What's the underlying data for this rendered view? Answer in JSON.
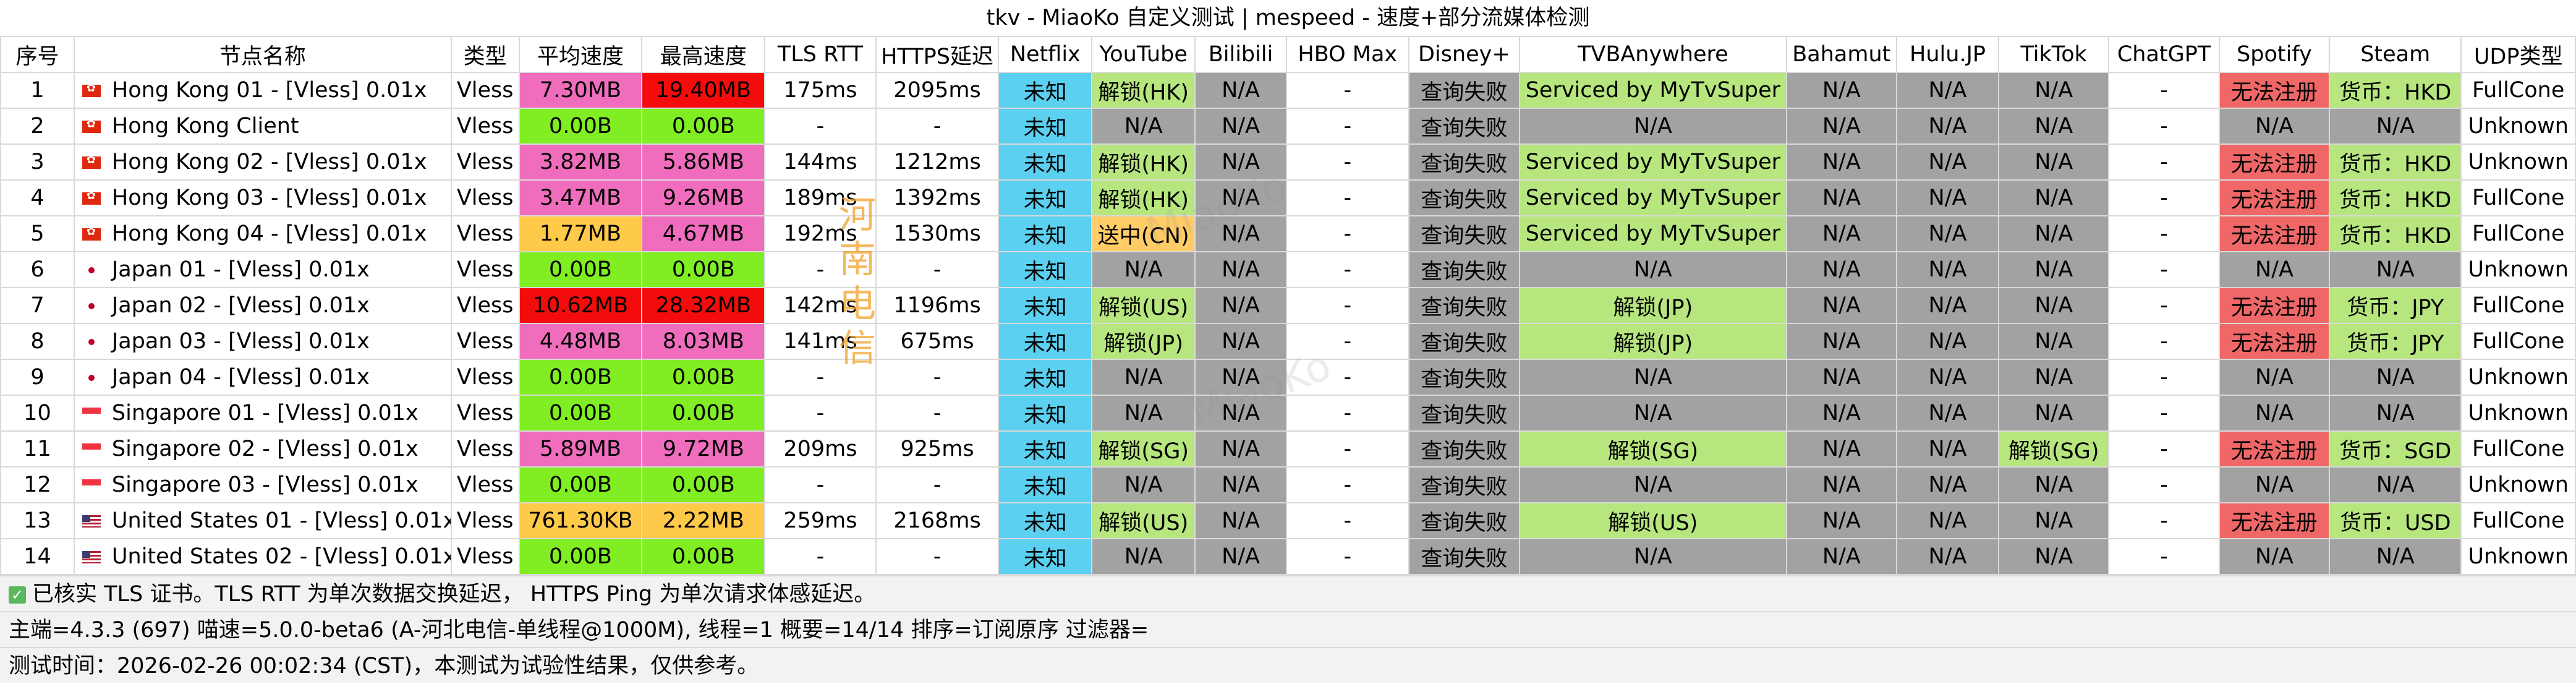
{
  "title": "tkv - MiaoKo 自定义测试 | mespeed - 速度+部分流媒体检测",
  "colors": {
    "pink": "#f06dbd",
    "red": "#f40c0c",
    "lime": "#80ee22",
    "orange": "#ffc94a",
    "cyan": "#5bd0f0",
    "light_green": "#b7e67f",
    "gray": "#a2a2a2",
    "salmon": "#ef6767",
    "peach": "#ffcc66",
    "white": "#ffffff"
  },
  "columns": [
    "序号",
    "节点名称",
    "类型",
    "平均速度",
    "最高速度",
    "TLS RTT",
    "HTTPS延迟",
    "Netflix",
    "YouTube",
    "Bilibili",
    "HBO Max",
    "Disney+",
    "TVBAnywhere",
    "Bahamut",
    "Hulu.JP",
    "TikTok",
    "ChatGPT",
    "Spotify",
    "Steam",
    "UDP类型"
  ],
  "rows": [
    {
      "id": "1",
      "flag": "hk",
      "name": "Hong Kong 01 - [Vless] 0.01x",
      "type": "Vless",
      "avg": "7.30MB",
      "avg_c": "pink",
      "max": "19.40MB",
      "max_c": "red",
      "tls": "175ms",
      "https": "2095ms",
      "netflix": "未知",
      "youtube": "解锁(HK)",
      "yt_c": "light_green",
      "bilibili": "N/A",
      "hbo": "-",
      "disney": "查询失败",
      "tvb": "Serviced by MyTvSuper",
      "tvb_c": "light_green",
      "bahamut": "N/A",
      "hulu": "N/A",
      "tiktok": "N/A",
      "tt_c": "gray",
      "chatgpt": "-",
      "spotify": "无法注册",
      "sp_c": "salmon",
      "steam": "货币：HKD",
      "st_c": "light_green",
      "udp": "FullCone"
    },
    {
      "id": "2",
      "flag": "hk",
      "name": "Hong Kong Client",
      "type": "Vless",
      "avg": "0.00B",
      "avg_c": "lime",
      "max": "0.00B",
      "max_c": "lime",
      "tls": "-",
      "https": "-",
      "netflix": "未知",
      "youtube": "N/A",
      "yt_c": "gray",
      "bilibili": "N/A",
      "hbo": "-",
      "disney": "查询失败",
      "tvb": "N/A",
      "tvb_c": "gray",
      "bahamut": "N/A",
      "hulu": "N/A",
      "tiktok": "N/A",
      "tt_c": "gray",
      "chatgpt": "-",
      "spotify": "N/A",
      "sp_c": "gray",
      "steam": "N/A",
      "st_c": "gray",
      "udp": "Unknown"
    },
    {
      "id": "3",
      "flag": "hk",
      "name": "Hong Kong 02 - [Vless] 0.01x",
      "type": "Vless",
      "avg": "3.82MB",
      "avg_c": "pink",
      "max": "5.86MB",
      "max_c": "pink",
      "tls": "144ms",
      "https": "1212ms",
      "netflix": "未知",
      "youtube": "解锁(HK)",
      "yt_c": "light_green",
      "bilibili": "N/A",
      "hbo": "-",
      "disney": "查询失败",
      "tvb": "Serviced by MyTvSuper",
      "tvb_c": "light_green",
      "bahamut": "N/A",
      "hulu": "N/A",
      "tiktok": "N/A",
      "tt_c": "gray",
      "chatgpt": "-",
      "spotify": "无法注册",
      "sp_c": "salmon",
      "steam": "货币：HKD",
      "st_c": "light_green",
      "udp": "Unknown"
    },
    {
      "id": "4",
      "flag": "hk",
      "name": "Hong Kong 03 - [Vless] 0.01x",
      "type": "Vless",
      "avg": "3.47MB",
      "avg_c": "pink",
      "max": "9.26MB",
      "max_c": "pink",
      "tls": "189ms",
      "https": "1392ms",
      "netflix": "未知",
      "youtube": "解锁(HK)",
      "yt_c": "light_green",
      "bilibili": "N/A",
      "hbo": "-",
      "disney": "查询失败",
      "tvb": "Serviced by MyTvSuper",
      "tvb_c": "light_green",
      "bahamut": "N/A",
      "hulu": "N/A",
      "tiktok": "N/A",
      "tt_c": "gray",
      "chatgpt": "-",
      "spotify": "无法注册",
      "sp_c": "salmon",
      "steam": "货币：HKD",
      "st_c": "light_green",
      "udp": "FullCone"
    },
    {
      "id": "5",
      "flag": "hk",
      "name": "Hong Kong 04 - [Vless] 0.01x",
      "type": "Vless",
      "avg": "1.77MB",
      "avg_c": "orange",
      "max": "4.67MB",
      "max_c": "pink",
      "tls": "192ms",
      "https": "1530ms",
      "netflix": "未知",
      "youtube": "送中(CN)",
      "yt_c": "peach",
      "bilibili": "N/A",
      "hbo": "-",
      "disney": "查询失败",
      "tvb": "Serviced by MyTvSuper",
      "tvb_c": "light_green",
      "bahamut": "N/A",
      "hulu": "N/A",
      "tiktok": "N/A",
      "tt_c": "gray",
      "chatgpt": "-",
      "spotify": "无法注册",
      "sp_c": "salmon",
      "steam": "货币：HKD",
      "st_c": "light_green",
      "udp": "FullCone"
    },
    {
      "id": "6",
      "flag": "jp",
      "name": "Japan 01 - [Vless] 0.01x",
      "type": "Vless",
      "avg": "0.00B",
      "avg_c": "lime",
      "max": "0.00B",
      "max_c": "lime",
      "tls": "-",
      "https": "-",
      "netflix": "未知",
      "youtube": "N/A",
      "yt_c": "gray",
      "bilibili": "N/A",
      "hbo": "-",
      "disney": "查询失败",
      "tvb": "N/A",
      "tvb_c": "gray",
      "bahamut": "N/A",
      "hulu": "N/A",
      "tiktok": "N/A",
      "tt_c": "gray",
      "chatgpt": "-",
      "spotify": "N/A",
      "sp_c": "gray",
      "steam": "N/A",
      "st_c": "gray",
      "udp": "Unknown"
    },
    {
      "id": "7",
      "flag": "jp",
      "name": "Japan 02 - [Vless] 0.01x",
      "type": "Vless",
      "avg": "10.62MB",
      "avg_c": "red",
      "max": "28.32MB",
      "max_c": "red",
      "tls": "142ms",
      "https": "1196ms",
      "netflix": "未知",
      "youtube": "解锁(US)",
      "yt_c": "light_green",
      "bilibili": "N/A",
      "hbo": "-",
      "disney": "查询失败",
      "tvb": "解锁(JP)",
      "tvb_c": "light_green",
      "bahamut": "N/A",
      "hulu": "N/A",
      "tiktok": "N/A",
      "tt_c": "gray",
      "chatgpt": "-",
      "spotify": "无法注册",
      "sp_c": "salmon",
      "steam": "货币：JPY",
      "st_c": "light_green",
      "udp": "FullCone"
    },
    {
      "id": "8",
      "flag": "jp",
      "name": "Japan 03 - [Vless] 0.01x",
      "type": "Vless",
      "avg": "4.48MB",
      "avg_c": "pink",
      "max": "8.03MB",
      "max_c": "pink",
      "tls": "141ms",
      "https": "675ms",
      "netflix": "未知",
      "youtube": "解锁(JP)",
      "yt_c": "light_green",
      "bilibili": "N/A",
      "hbo": "-",
      "disney": "查询失败",
      "tvb": "解锁(JP)",
      "tvb_c": "light_green",
      "bahamut": "N/A",
      "hulu": "N/A",
      "tiktok": "N/A",
      "tt_c": "gray",
      "chatgpt": "-",
      "spotify": "无法注册",
      "sp_c": "salmon",
      "steam": "货币：JPY",
      "st_c": "light_green",
      "udp": "FullCone"
    },
    {
      "id": "9",
      "flag": "jp",
      "name": "Japan 04 - [Vless] 0.01x",
      "type": "Vless",
      "avg": "0.00B",
      "avg_c": "lime",
      "max": "0.00B",
      "max_c": "lime",
      "tls": "-",
      "https": "-",
      "netflix": "未知",
      "youtube": "N/A",
      "yt_c": "gray",
      "bilibili": "N/A",
      "hbo": "-",
      "disney": "查询失败",
      "tvb": "N/A",
      "tvb_c": "gray",
      "bahamut": "N/A",
      "hulu": "N/A",
      "tiktok": "N/A",
      "tt_c": "gray",
      "chatgpt": "-",
      "spotify": "N/A",
      "sp_c": "gray",
      "steam": "N/A",
      "st_c": "gray",
      "udp": "Unknown"
    },
    {
      "id": "10",
      "flag": "sg",
      "name": "Singapore 01 - [Vless] 0.01x",
      "type": "Vless",
      "avg": "0.00B",
      "avg_c": "lime",
      "max": "0.00B",
      "max_c": "lime",
      "tls": "-",
      "https": "-",
      "netflix": "未知",
      "youtube": "N/A",
      "yt_c": "gray",
      "bilibili": "N/A",
      "hbo": "-",
      "disney": "查询失败",
      "tvb": "N/A",
      "tvb_c": "gray",
      "bahamut": "N/A",
      "hulu": "N/A",
      "tiktok": "N/A",
      "tt_c": "gray",
      "chatgpt": "-",
      "spotify": "N/A",
      "sp_c": "gray",
      "steam": "N/A",
      "st_c": "gray",
      "udp": "Unknown"
    },
    {
      "id": "11",
      "flag": "sg",
      "name": "Singapore 02 - [Vless] 0.01x",
      "type": "Vless",
      "avg": "5.89MB",
      "avg_c": "pink",
      "max": "9.72MB",
      "max_c": "pink",
      "tls": "209ms",
      "https": "925ms",
      "netflix": "未知",
      "youtube": "解锁(SG)",
      "yt_c": "light_green",
      "bilibili": "N/A",
      "hbo": "-",
      "disney": "查询失败",
      "tvb": "解锁(SG)",
      "tvb_c": "light_green",
      "bahamut": "N/A",
      "hulu": "N/A",
      "tiktok": "解锁(SG)",
      "tt_c": "light_green",
      "chatgpt": "-",
      "spotify": "无法注册",
      "sp_c": "salmon",
      "steam": "货币：SGD",
      "st_c": "light_green",
      "udp": "FullCone"
    },
    {
      "id": "12",
      "flag": "sg",
      "name": "Singapore 03 - [Vless] 0.01x",
      "type": "Vless",
      "avg": "0.00B",
      "avg_c": "lime",
      "max": "0.00B",
      "max_c": "lime",
      "tls": "-",
      "https": "-",
      "netflix": "未知",
      "youtube": "N/A",
      "yt_c": "gray",
      "bilibili": "N/A",
      "hbo": "-",
      "disney": "查询失败",
      "tvb": "N/A",
      "tvb_c": "gray",
      "bahamut": "N/A",
      "hulu": "N/A",
      "tiktok": "N/A",
      "tt_c": "gray",
      "chatgpt": "-",
      "spotify": "N/A",
      "sp_c": "gray",
      "steam": "N/A",
      "st_c": "gray",
      "udp": "Unknown"
    },
    {
      "id": "13",
      "flag": "us",
      "name": "United States 01 - [Vless] 0.01x",
      "type": "Vless",
      "avg": "761.30KB",
      "avg_c": "orange",
      "max": "2.22MB",
      "max_c": "orange",
      "tls": "259ms",
      "https": "2168ms",
      "netflix": "未知",
      "youtube": "解锁(US)",
      "yt_c": "light_green",
      "bilibili": "N/A",
      "hbo": "-",
      "disney": "查询失败",
      "tvb": "解锁(US)",
      "tvb_c": "light_green",
      "bahamut": "N/A",
      "hulu": "N/A",
      "tiktok": "N/A",
      "tt_c": "gray",
      "chatgpt": "-",
      "spotify": "无法注册",
      "sp_c": "salmon",
      "steam": "货币：USD",
      "st_c": "light_green",
      "udp": "FullCone"
    },
    {
      "id": "14",
      "flag": "us",
      "name": "United States 02 - [Vless] 0.01x",
      "type": "Vless",
      "avg": "0.00B",
      "avg_c": "lime",
      "max": "0.00B",
      "max_c": "lime",
      "tls": "-",
      "https": "-",
      "netflix": "未知",
      "youtube": "N/A",
      "yt_c": "gray",
      "bilibili": "N/A",
      "hbo": "-",
      "disney": "查询失败",
      "tvb": "N/A",
      "tvb_c": "gray",
      "bahamut": "N/A",
      "hulu": "N/A",
      "tiktok": "N/A",
      "tt_c": "gray",
      "chatgpt": "-",
      "spotify": "N/A",
      "sp_c": "gray",
      "steam": "N/A",
      "st_c": "gray",
      "udp": "Unknown"
    }
  ],
  "footer": {
    "tls_note": "已核实 TLS 证书。TLS RTT 为单次数据交换延迟， HTTPS Ping 为单次请求体感延迟。",
    "info": "主端=4.3.3 (697) 喵速=5.0.0-beta6 (A-河北电信-单线程@1000M), 线程=1 概要=14/14 排序=订阅原序 过滤器=",
    "time": "测试时间：2026-02-26 00:02:34 (CST)，本测试为试验性结果，仅供参考。"
  },
  "watermark": {
    "text": "河南电信",
    "faint": "MiaoKo"
  }
}
